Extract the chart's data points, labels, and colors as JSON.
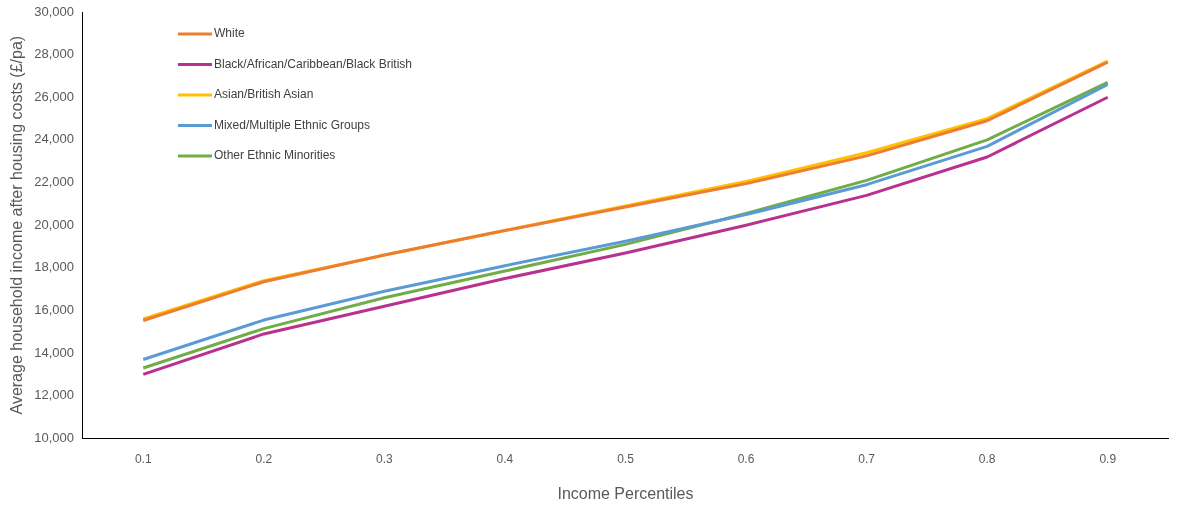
{
  "chart_data": {
    "type": "line",
    "xlabel": "Income Percentiles",
    "ylabel": "Average household income after housing costs (£/pa)",
    "categories": [
      "0.1",
      "0.2",
      "0.3",
      "0.4",
      "0.5",
      "0.6",
      "0.7",
      "0.8",
      "0.9"
    ],
    "ylim": [
      10000,
      30000
    ],
    "yticks": [
      {
        "value": 10000,
        "label": "10,000"
      },
      {
        "value": 12000,
        "label": "12,000"
      },
      {
        "value": 14000,
        "label": "14,000"
      },
      {
        "value": 16000,
        "label": "16,000"
      },
      {
        "value": 18000,
        "label": "18,000"
      },
      {
        "value": 20000,
        "label": "20,000"
      },
      {
        "value": 22000,
        "label": "22,000"
      },
      {
        "value": 24000,
        "label": "24,000"
      },
      {
        "value": 26000,
        "label": "26,000"
      },
      {
        "value": 28000,
        "label": "28,000"
      },
      {
        "value": 30000,
        "label": "30,000"
      }
    ],
    "grid": false,
    "legend": "top left",
    "marker": "none",
    "line_style": "solid",
    "series": [
      {
        "name": "White",
        "color": "#ed7d31",
        "values": [
          15530,
          17350,
          18600,
          19750,
          20850,
          21950,
          23250,
          24900,
          27650
        ]
      },
      {
        "name": "Black/African/Caribbean/Black British",
        "color": "#b8318f",
        "values": [
          13000,
          14900,
          16200,
          17500,
          18700,
          20000,
          21400,
          23200,
          26000
        ]
      },
      {
        "name": "Asian/British Asian",
        "color": "#ffc000",
        "values": [
          15600,
          17400,
          18600,
          19750,
          20900,
          22050,
          23400,
          25000,
          27700
        ]
      },
      {
        "name": "Mixed/Multiple Ethnic Groups",
        "color": "#5b9bd5",
        "values": [
          13700,
          15550,
          16900,
          18100,
          19250,
          20500,
          21900,
          23700,
          26600
        ]
      },
      {
        "name": "Other Ethnic Minorities",
        "color": "#70ad47",
        "values": [
          13300,
          15150,
          16600,
          17850,
          19100,
          20550,
          22100,
          24000,
          26700
        ]
      }
    ]
  }
}
